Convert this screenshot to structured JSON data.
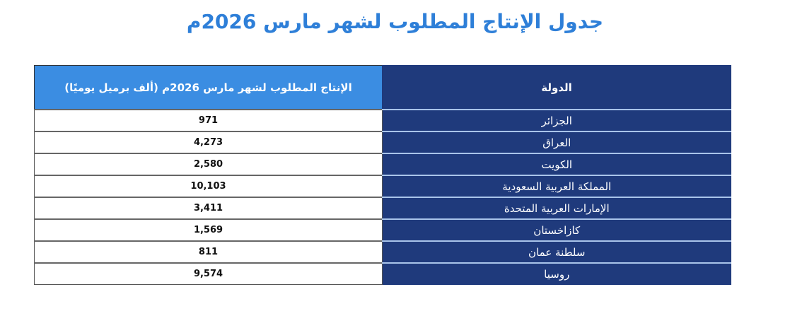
{
  "title": "جدول الإنتاج المطلوب لشهر مارس 2026م",
  "table": {
    "headers": {
      "country": "الدولة",
      "production": "الإنتاج المطلوب لشهر مارس 2026م (ألف برميل يوميًا)"
    },
    "rows": [
      {
        "country": "الجزائر",
        "production": "971"
      },
      {
        "country": "العراق",
        "production": "4,273"
      },
      {
        "country": "الكويت",
        "production": "2,580"
      },
      {
        "country": "المملكة العربية السعودية",
        "production": "10,103"
      },
      {
        "country": "الإمارات العربية المتحدة",
        "production": "3,411"
      },
      {
        "country": "كازاخستان",
        "production": "1,569"
      },
      {
        "country": "سلطنة عمان",
        "production": "811"
      },
      {
        "country": "روسيا",
        "production": "9,574"
      }
    ]
  },
  "colors": {
    "title": "#2e7fd8",
    "country_column": "#1f3a7c",
    "production_header": "#3b8de2"
  }
}
